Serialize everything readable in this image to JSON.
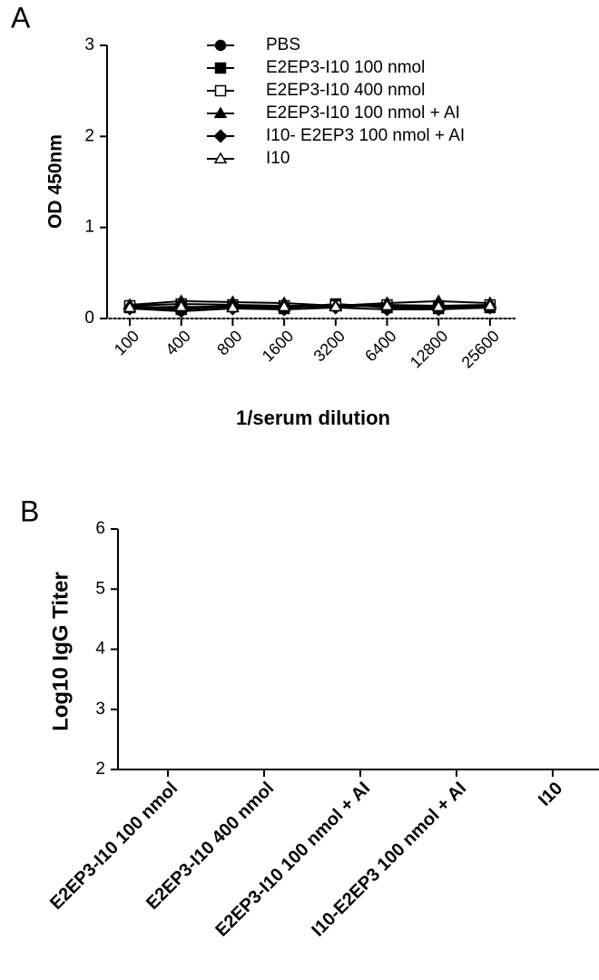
{
  "chart_data": [
    {
      "type": "line",
      "label": "A",
      "y_label": "OD 450nm",
      "x_label": "1/serum dilution",
      "categories": [
        "100",
        "400",
        "800",
        "1600",
        "3200",
        "6400",
        "12800",
        "25600"
      ],
      "ylim": [
        0,
        3
      ],
      "yticks": [
        0,
        1,
        2,
        3
      ],
      "series": [
        {
          "name": "PBS",
          "color": "#000000",
          "marker": "circle",
          "values": [
            0.13,
            0.12,
            0.14,
            0.12,
            0.15,
            0.13,
            0.12,
            0.13
          ]
        },
        {
          "name": "E2EP3-I10 100 nmol",
          "color": "#000000",
          "marker": "square",
          "values": [
            0.12,
            0.1,
            0.13,
            0.11,
            0.16,
            0.12,
            0.11,
            0.12
          ]
        },
        {
          "name": "E2EP3-I10 400 nmol",
          "color": "#000000",
          "marker": "square-open",
          "values": [
            0.14,
            0.16,
            0.15,
            0.14,
            0.14,
            0.15,
            0.14,
            0.15
          ]
        },
        {
          "name": "E2EP3-I10 100 nmol + AI",
          "color": "#000000",
          "marker": "triangle",
          "values": [
            0.15,
            0.19,
            0.18,
            0.17,
            0.14,
            0.17,
            0.19,
            0.17
          ]
        },
        {
          "name": "I10- E2EP3 100 nmol + AI",
          "color": "#000000",
          "marker": "diamond",
          "values": [
            0.11,
            0.08,
            0.11,
            0.1,
            0.12,
            0.1,
            0.1,
            0.12
          ]
        },
        {
          "name": "I10",
          "color": "#000000",
          "marker": "triangle-open",
          "values": [
            0.12,
            0.13,
            0.12,
            0.13,
            0.13,
            0.14,
            0.13,
            0.14
          ]
        }
      ]
    },
    {
      "type": "bar",
      "label": "B",
      "y_label": "Log10 IgG Titer",
      "categories": [
        "E2EP3-I10 100 nmol",
        "E2EP3-I10 400 nmol",
        "E2EP3-I10 100 nmol + AI",
        "I10-E2EP3 100 nmol + AI",
        "I10"
      ],
      "ylim": [
        2,
        6
      ],
      "yticks": [
        2,
        3,
        4,
        5,
        6
      ]
    }
  ]
}
